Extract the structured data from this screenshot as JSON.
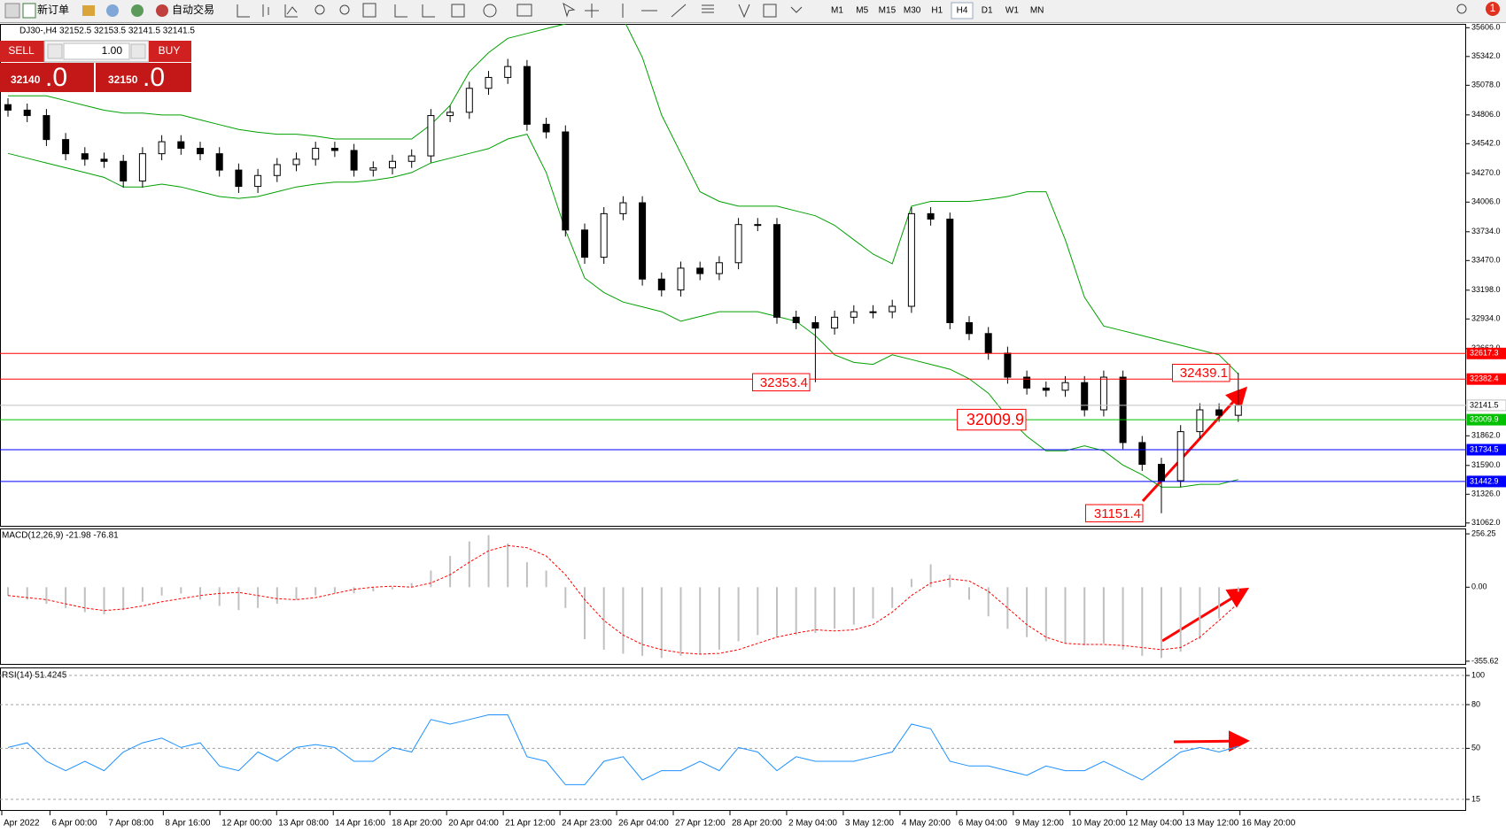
{
  "toolbar": {
    "new_order": "新订单",
    "auto_trading": "自动交易",
    "timeframes": [
      "M1",
      "M5",
      "M15",
      "M30",
      "H1",
      "H4",
      "D1",
      "W1",
      "MN"
    ],
    "selected_timeframe": 5,
    "badge": "1"
  },
  "trade_panel": {
    "sell": "SELL",
    "buy": "BUY",
    "lot": "1.00",
    "sell_price": "32140",
    "sell_price_big": ".0",
    "buy_price": "32150",
    "buy_price_big": ".0"
  },
  "chart_data": [
    {
      "type": "candlestick",
      "title": "DJ30-,H4  32152.5 32153.5 32141.5 32141.5",
      "open": [
        34900,
        34850,
        34800,
        34580,
        34450,
        34400,
        34380,
        34200,
        34450,
        34560,
        34500,
        34450,
        34300,
        34150,
        34250,
        34350,
        34400,
        34500,
        34480,
        34300,
        34320,
        34380,
        34430,
        34800,
        34830,
        35050,
        35150,
        35250,
        34720,
        34650,
        33750,
        33500,
        33900,
        34000,
        33300,
        33200,
        33400,
        33350,
        33450,
        33800,
        33800,
        32950,
        32900,
        32850,
        32950,
        33000,
        33000,
        33050,
        33900,
        33850,
        32900,
        32800,
        32620,
        32400,
        32300,
        32280,
        32350,
        32100,
        32400,
        31800,
        31600,
        31450,
        31900,
        32100,
        32050
      ],
      "high": [
        34960,
        34910,
        34860,
        34640,
        34510,
        34460,
        34440,
        34510,
        34620,
        34620,
        34560,
        34510,
        34360,
        34310,
        34410,
        34460,
        34560,
        34560,
        34540,
        34380,
        34440,
        34490,
        34860,
        34890,
        35110,
        35210,
        35320,
        35310,
        34780,
        34710,
        33810,
        33960,
        34060,
        34060,
        33360,
        33460,
        33460,
        33510,
        33860,
        33860,
        33860,
        33010,
        32960,
        33010,
        33060,
        33060,
        33110,
        33960,
        33960,
        33910,
        32960,
        32860,
        32680,
        32460,
        32360,
        32410,
        32410,
        32460,
        32460,
        31860,
        31660,
        31960,
        32160,
        32160,
        32439.1
      ],
      "low": [
        34790,
        34740,
        34520,
        34390,
        34340,
        34320,
        34140,
        34140,
        34390,
        34440,
        34390,
        34240,
        34090,
        34090,
        34190,
        34290,
        34340,
        34420,
        34240,
        34240,
        34260,
        34320,
        34370,
        34740,
        34770,
        34990,
        35090,
        34660,
        34590,
        33690,
        33440,
        33440,
        33840,
        33240,
        33140,
        33140,
        33290,
        33290,
        33390,
        33740,
        32890,
        32840,
        32353.4,
        32790,
        32890,
        32940,
        32940,
        32990,
        33790,
        32840,
        32740,
        32560,
        32340,
        32240,
        32220,
        32220,
        32040,
        32040,
        31740,
        31540,
        31151.4,
        31390,
        31840,
        31990,
        31990
      ],
      "close": [
        34850,
        34800,
        34580,
        34450,
        34400,
        34380,
        34200,
        34450,
        34560,
        34500,
        34450,
        34300,
        34150,
        34250,
        34350,
        34400,
        34500,
        34480,
        34300,
        34320,
        34380,
        34430,
        34800,
        34830,
        35050,
        35150,
        35250,
        34720,
        34650,
        33750,
        33500,
        33900,
        34000,
        33300,
        33200,
        33400,
        33350,
        33450,
        33800,
        33800,
        32950,
        32900,
        32850,
        32950,
        33000,
        33000,
        33050,
        33900,
        33850,
        32900,
        32800,
        32620,
        32400,
        32300,
        32280,
        32350,
        32100,
        32400,
        31800,
        31600,
        31450,
        31900,
        32100,
        32050,
        32141.5
      ],
      "up_color": "#ffffff",
      "down_color": "#000000",
      "bands": {
        "color": "#00a000",
        "upper": [
          34981,
          34981,
          34981,
          34937,
          34893,
          34849,
          34823,
          34823,
          34805,
          34805,
          34761,
          34717,
          34673,
          34647,
          34629,
          34629,
          34612,
          34585,
          34585,
          34585,
          34585,
          34585,
          34717,
          34893,
          35201,
          35377,
          35509,
          35553,
          35597,
          35641,
          35780,
          35780,
          35690,
          35333,
          34805,
          34453,
          34101,
          34013,
          33969,
          33969,
          33969,
          33925,
          33881,
          33793,
          33661,
          33529,
          33441,
          33969,
          34013,
          34013,
          34013,
          34031,
          34057,
          34101,
          34101,
          33661,
          33133,
          32869,
          32825,
          32781,
          32737,
          32693,
          32649,
          32605,
          32429
        ],
        "lower": [
          34453,
          34409,
          34365,
          34321,
          34277,
          34233,
          34145,
          34145,
          34171,
          34145,
          34101,
          34057,
          34040,
          34057,
          34101,
          34145,
          34171,
          34189,
          34189,
          34207,
          34233,
          34277,
          34365,
          34409,
          34453,
          34497,
          34585,
          34629,
          34277,
          33749,
          33309,
          33177,
          33089,
          33045,
          33001,
          32913,
          32957,
          33001,
          33001,
          33001,
          32957,
          32913,
          32781,
          32605,
          32535,
          32517,
          32605,
          32561,
          32517,
          32473,
          32385,
          32253,
          32033,
          31857,
          31725,
          31725,
          31769,
          31725,
          31593,
          31505,
          31391,
          31391,
          31417,
          31417,
          31461
        ]
      },
      "levels": [
        {
          "value": 32617.3,
          "label": "32617.3",
          "color": "#ff0000"
        },
        {
          "value": 32382.4,
          "label": "32382.4",
          "color": "#ff0000"
        },
        {
          "value": 32141.5,
          "label": "32141.5",
          "color": "#c0c0c0"
        },
        {
          "value": 32009.9,
          "label": "32009.9",
          "color": "#00c000"
        },
        {
          "value": 31734.5,
          "label": "31734.5",
          "color": "#0000ff"
        },
        {
          "value": 31442.9,
          "label": "31442.9",
          "color": "#0000ff"
        }
      ],
      "annotations": [
        {
          "value": 32353.4,
          "label": "32353.4"
        },
        {
          "value": 32009.9,
          "label": "32009.9"
        },
        {
          "value": 31151.4,
          "label": "31151.4"
        },
        {
          "value": 32439.1,
          "label": "32439.1"
        }
      ],
      "ylim": [
        31036,
        35641
      ],
      "yticks": [
        {
          "value": 35606,
          "label": "35606.0"
        },
        {
          "value": 35342,
          "label": "35342.0"
        },
        {
          "value": 35078,
          "label": "35078.0"
        },
        {
          "value": 34806,
          "label": "34806.0"
        },
        {
          "value": 34542,
          "label": "34542.0"
        },
        {
          "value": 34270,
          "label": "34270.0"
        },
        {
          "value": 34006,
          "label": "34006.0"
        },
        {
          "value": 33734,
          "label": "33734.0"
        },
        {
          "value": 33470,
          "label": "33470.0"
        },
        {
          "value": 33198,
          "label": "33198.0"
        },
        {
          "value": 32934,
          "label": "32934.0"
        },
        {
          "value": 32662,
          "label": "32662.0"
        },
        {
          "value": 31862,
          "label": "31862.0"
        },
        {
          "value": 31590,
          "label": "31590.0"
        },
        {
          "value": 31326,
          "label": "31326.0"
        },
        {
          "value": 31062,
          "label": "31062.0"
        }
      ],
      "x_labels": [
        "Apr 2022",
        "6 Apr 00:00",
        "7 Apr 08:00",
        "8 Apr 16:00",
        "12 Apr 00:00",
        "13 Apr 08:00",
        "14 Apr 16:00",
        "18 Apr 20:00",
        "20 Apr 04:00",
        "21 Apr 12:00",
        "24 Apr 23:00",
        "26 Apr 04:00",
        "27 Apr 12:00",
        "28 Apr 20:00",
        "2 May 04:00",
        "3 May 12:00",
        "4 May 20:00",
        "6 May 04:00",
        "9 May 12:00",
        "10 May 20:00",
        "12 May 04:00",
        "13 May 12:00",
        "16 May 20:00"
      ]
    },
    {
      "type": "macd",
      "title": "MACD(12,26,9) -21.98 -76.81",
      "histogram": [
        -40,
        -60,
        -80,
        -100,
        -120,
        -130,
        -110,
        -70,
        -40,
        -30,
        -60,
        -90,
        -110,
        -100,
        -80,
        -60,
        -40,
        -30,
        -30,
        -20,
        -10,
        20,
        80,
        150,
        220,
        250,
        210,
        120,
        80,
        -100,
        -250,
        -300,
        -320,
        -330,
        -340,
        -330,
        -320,
        -300,
        -260,
        -230,
        -240,
        -230,
        -220,
        -200,
        -180,
        -150,
        -100,
        40,
        110,
        60,
        -60,
        -140,
        -200,
        -240,
        -260,
        -270,
        -280,
        -270,
        -300,
        -330,
        -340,
        -310,
        -250,
        -150,
        -21.98
      ],
      "signal": [
        -40,
        -50,
        -60,
        -80,
        -100,
        -112,
        -105,
        -90,
        -70,
        -55,
        -40,
        -30,
        -25,
        -40,
        -55,
        -60,
        -50,
        -30,
        -10,
        0,
        5,
        0,
        20,
        60,
        120,
        175,
        200,
        190,
        150,
        60,
        -60,
        -160,
        -230,
        -275,
        -300,
        -315,
        -322,
        -318,
        -300,
        -270,
        -240,
        -220,
        -205,
        -210,
        -205,
        -180,
        -120,
        -40,
        20,
        40,
        30,
        -20,
        -100,
        -180,
        -240,
        -270,
        -275,
        -275,
        -280,
        -290,
        -300,
        -290,
        -240,
        -160,
        -76.81
      ],
      "histogram_color": "#c0c0c0",
      "signal_color": "#ff0000",
      "ylim": [
        -372.9,
        282.1
      ],
      "yticks": [
        256.25,
        {
          "value": 0,
          "label": "0.00"
        },
        -355.62
      ]
    },
    {
      "type": "line",
      "title": "RSI(14) 51.4245",
      "values": [
        50.6,
        53.8,
        41.1,
        34.7,
        41.1,
        34.7,
        47.5,
        53.8,
        57.0,
        50.6,
        53.8,
        37.9,
        34.7,
        47.5,
        41.1,
        50.6,
        52.6,
        50.6,
        41.1,
        41.1,
        50.6,
        47.5,
        69.8,
        66.6,
        69.8,
        73.0,
        73.0,
        44.3,
        41.1,
        25.1,
        25.1,
        41.1,
        44.3,
        28.3,
        34.7,
        34.7,
        41.1,
        34.7,
        50.6,
        47.5,
        34.7,
        44.3,
        41.1,
        41.1,
        41.1,
        44.3,
        47.5,
        66.6,
        63.4,
        41.1,
        37.9,
        37.9,
        34.7,
        31.5,
        37.9,
        34.7,
        34.7,
        41.1,
        34.7,
        28.3,
        37.9,
        47.5,
        50.6,
        47.5,
        51.4245
      ],
      "color": "#1e90ff",
      "ylim": [
        7.1,
        105.5
      ],
      "yticks": [
        100,
        80,
        50,
        15
      ],
      "grid": true
    }
  ]
}
